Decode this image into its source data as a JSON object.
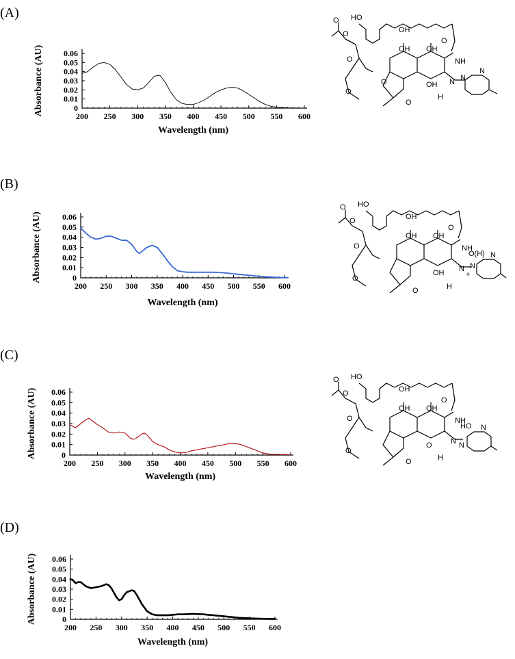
{
  "panels": [
    {
      "label": "(A)"
    },
    {
      "label": "(B)"
    },
    {
      "label": "(C)"
    },
    {
      "label": "(D)"
    }
  ],
  "chart_data": [
    {
      "type": "line",
      "panel": "(A)",
      "xlabel": "Wavelength (nm)",
      "ylabel": "Absorbance (AU)",
      "xlim": [
        200,
        600
      ],
      "ylim": [
        0,
        0.06
      ],
      "xticks": [
        "200",
        "250",
        "300",
        "350",
        "400",
        "450",
        "500",
        "550",
        "600"
      ],
      "yticks": [
        "0",
        "0.01",
        "0.02",
        "0.03",
        "0.04",
        "0.05",
        "0.06"
      ],
      "line_color": "#000000",
      "grid": false,
      "series": [
        {
          "x": [
            200,
            210,
            220,
            230,
            240,
            250,
            260,
            270,
            280,
            290,
            300,
            310,
            320,
            330,
            340,
            350,
            360,
            370,
            380,
            390,
            400,
            410,
            420,
            430,
            440,
            450,
            460,
            470,
            480,
            490,
            500,
            510,
            520,
            530,
            540,
            550,
            560,
            570,
            580,
            590,
            600
          ],
          "values": [
            0.038,
            0.04,
            0.045,
            0.049,
            0.05,
            0.048,
            0.042,
            0.034,
            0.026,
            0.021,
            0.02,
            0.022,
            0.028,
            0.035,
            0.036,
            0.028,
            0.017,
            0.009,
            0.005,
            0.004,
            0.004,
            0.006,
            0.009,
            0.013,
            0.017,
            0.02,
            0.022,
            0.023,
            0.022,
            0.019,
            0.015,
            0.011,
            0.007,
            0.004,
            0.002,
            0.001,
            0.0006,
            0.0003,
            0.0002,
            0.0001,
            0.0001
          ]
        }
      ]
    },
    {
      "type": "line",
      "panel": "(B)",
      "xlabel": "Wavelength (nm)",
      "ylabel": "Absorbance (AU)",
      "xlim": [
        200,
        600
      ],
      "ylim": [
        0,
        0.06
      ],
      "xticks": [
        "200",
        "250",
        "300",
        "350",
        "400",
        "450",
        "500",
        "550",
        "600"
      ],
      "yticks": [
        "0",
        "0.01",
        "0.02",
        "0.03",
        "0.04",
        "0.05",
        "0.06"
      ],
      "line_color": "#3a67d3",
      "grid": false,
      "series": [
        {
          "x": [
            200,
            210,
            220,
            230,
            240,
            250,
            260,
            270,
            280,
            290,
            300,
            310,
            315,
            320,
            330,
            340,
            350,
            360,
            370,
            380,
            390,
            400,
            410,
            420,
            430,
            440,
            450,
            460,
            470,
            480,
            490,
            500,
            510,
            520,
            530,
            540,
            550,
            560,
            570,
            580,
            590,
            600,
            607
          ],
          "values": [
            0.049,
            0.044,
            0.04,
            0.038,
            0.039,
            0.041,
            0.041,
            0.039,
            0.037,
            0.037,
            0.033,
            0.026,
            0.024,
            0.026,
            0.03,
            0.032,
            0.03,
            0.024,
            0.017,
            0.011,
            0.007,
            0.006,
            0.0055,
            0.0055,
            0.0055,
            0.0055,
            0.0055,
            0.0055,
            0.0053,
            0.005,
            0.0045,
            0.004,
            0.0035,
            0.003,
            0.0025,
            0.002,
            0.0015,
            0.001,
            0.0008,
            0.0006,
            0.0004,
            0.0003,
            0.0002
          ]
        }
      ]
    },
    {
      "type": "line",
      "panel": "(C)",
      "xlabel": "Wavelength (nm)",
      "ylabel": "Absorbance (AU)",
      "xlim": [
        200,
        600
      ],
      "ylim": [
        0,
        0.06
      ],
      "xticks": [
        "200",
        "250",
        "300",
        "350",
        "400",
        "450",
        "500",
        "550",
        "600"
      ],
      "yticks": [
        "0",
        "0.01",
        "0.02",
        "0.03",
        "0.04",
        "0.05",
        "0.06"
      ],
      "line_color": "#b51a1a",
      "grid": false,
      "series": [
        {
          "x": [
            200,
            210,
            220,
            230,
            235,
            240,
            250,
            260,
            270,
            280,
            290,
            300,
            310,
            315,
            320,
            330,
            335,
            340,
            350,
            360,
            370,
            380,
            390,
            400,
            410,
            420,
            430,
            440,
            450,
            460,
            470,
            480,
            490,
            500,
            510,
            520,
            530,
            540,
            550,
            560,
            570,
            580,
            590,
            600
          ],
          "values": [
            0.029,
            0.026,
            0.03,
            0.034,
            0.035,
            0.033,
            0.029,
            0.026,
            0.022,
            0.021,
            0.022,
            0.021,
            0.016,
            0.015,
            0.016,
            0.02,
            0.021,
            0.019,
            0.013,
            0.01,
            0.008,
            0.005,
            0.003,
            0.002,
            0.0025,
            0.004,
            0.005,
            0.006,
            0.007,
            0.008,
            0.009,
            0.01,
            0.011,
            0.011,
            0.01,
            0.008,
            0.006,
            0.004,
            0.002,
            0.001,
            0.0008,
            0.0006,
            0.0005,
            0.0004
          ]
        }
      ]
    },
    {
      "type": "line",
      "panel": "(D)",
      "xlabel": "Wavelength (nm)",
      "ylabel": "Absorbance (AU)",
      "xlim": [
        200,
        600
      ],
      "ylim": [
        0,
        0.06
      ],
      "xticks": [
        "200",
        "250",
        "300",
        "350",
        "400",
        "450",
        "500",
        "550",
        "600"
      ],
      "yticks": [
        "0",
        "0.01",
        "0.02",
        "0.03",
        "0.04",
        "0.05",
        "0.06"
      ],
      "line_color": "#000000",
      "grid": false,
      "series": [
        {
          "x": [
            200,
            205,
            210,
            215,
            220,
            230,
            240,
            250,
            260,
            270,
            275,
            280,
            290,
            295,
            300,
            305,
            310,
            320,
            325,
            330,
            340,
            350,
            360,
            370,
            380,
            390,
            400,
            410,
            420,
            430,
            440,
            450,
            460,
            470,
            480,
            490,
            500,
            510,
            520,
            530,
            540,
            550,
            560,
            570,
            580,
            590,
            600
          ],
          "values": [
            0.04,
            0.039,
            0.036,
            0.037,
            0.037,
            0.033,
            0.031,
            0.032,
            0.033,
            0.035,
            0.034,
            0.031,
            0.022,
            0.019,
            0.02,
            0.024,
            0.027,
            0.029,
            0.028,
            0.024,
            0.015,
            0.008,
            0.005,
            0.004,
            0.004,
            0.004,
            0.0045,
            0.005,
            0.005,
            0.0052,
            0.0054,
            0.0052,
            0.005,
            0.0045,
            0.004,
            0.0035,
            0.003,
            0.0025,
            0.002,
            0.0015,
            0.0012,
            0.001,
            0.0008,
            0.0006,
            0.0005,
            0.0004,
            0.0004
          ]
        }
      ]
    }
  ],
  "structures": {
    "atoms_A": [
      "HO",
      "OH",
      "O",
      "O",
      "OH",
      "OH",
      "NH",
      "N",
      "N",
      "N",
      "H",
      "O",
      "O",
      "O",
      "O",
      "O",
      "OH"
    ],
    "atoms_B": [
      "HO",
      "OH",
      "O",
      "O",
      "OH",
      "OH",
      "NH",
      "N",
      "O(H)",
      "N",
      "N",
      "H",
      "O",
      "O",
      "O",
      "O",
      "OH",
      "+"
    ],
    "atoms_C": [
      "HO",
      "OH",
      "O",
      "O",
      "OH",
      "OH",
      "NH",
      "N",
      "HO",
      "N",
      "N",
      "H",
      "O",
      "O",
      "O",
      "O",
      "O"
    ]
  }
}
